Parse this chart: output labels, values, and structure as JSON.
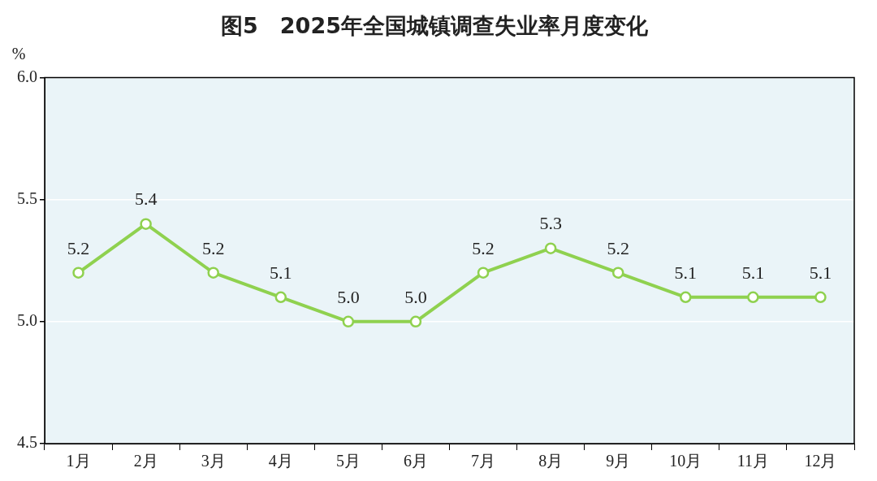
{
  "chart_data": {
    "type": "line",
    "title": "图5　2025年全国城镇调查失业率月度变化",
    "ylabel": "%",
    "categories": [
      "1月",
      "2月",
      "3月",
      "4月",
      "5月",
      "6月",
      "7月",
      "8月",
      "9月",
      "10月",
      "11月",
      "12月"
    ],
    "series": [
      {
        "color": "#8fd14f",
        "values": [
          5.2,
          5.4,
          5.2,
          5.1,
          5.0,
          5.0,
          5.2,
          5.3,
          5.2,
          5.1,
          5.1,
          5.1
        ],
        "value_labels": [
          "5.2",
          "5.4",
          "5.2",
          "5.1",
          "5.0",
          "5.0",
          "5.2",
          "5.3",
          "5.2",
          "5.1",
          "5.1",
          "5.1"
        ]
      }
    ],
    "ylim": [
      4.5,
      6.0
    ],
    "yticks": [
      {
        "value": 4.5,
        "label": "4.5"
      },
      {
        "value": 5.0,
        "label": "5.0"
      },
      {
        "value": 5.5,
        "label": "5.5"
      },
      {
        "value": 6.0,
        "label": "6.0"
      }
    ],
    "grid": "y",
    "marker": "circle",
    "line_style": "solid",
    "legend": false
  }
}
